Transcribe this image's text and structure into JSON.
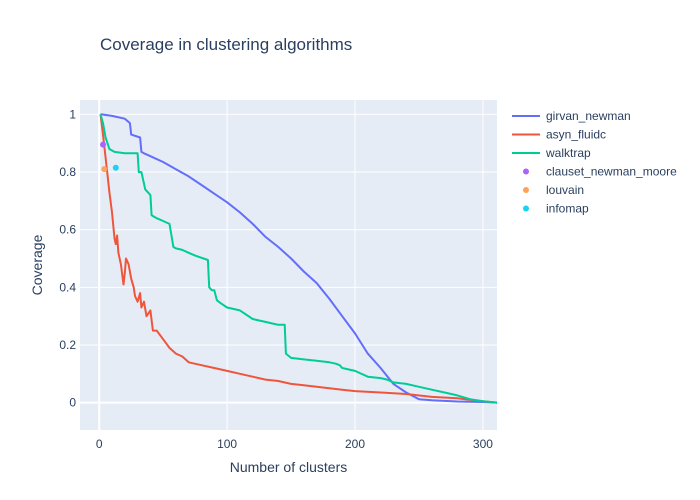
{
  "chart_data": {
    "type": "line",
    "title": "Coverage in clustering algorithms",
    "xlabel": "Number of clusters",
    "ylabel": "Coverage",
    "xlim": [
      -15,
      311
    ],
    "ylim": [
      -0.095,
      1.05
    ],
    "x_ticks": [
      0,
      100,
      200,
      300
    ],
    "x_tick_labels": [
      "0",
      "100",
      "200",
      "300"
    ],
    "y_ticks": [
      0,
      0.2,
      0.4,
      0.6,
      0.8,
      1
    ],
    "y_tick_labels": [
      "0",
      "0.2",
      "0.4",
      "0.6",
      "0.8",
      "1"
    ],
    "grid": true,
    "legend_position": "right",
    "plot_background": "#e5ecf6",
    "series": [
      {
        "name": "girvan_newman",
        "mode": "lines",
        "color": "#636efa",
        "x": [
          1,
          2,
          10,
          20,
          24,
          25,
          32,
          33,
          35,
          40,
          50,
          60,
          70,
          80,
          90,
          100,
          110,
          120,
          130,
          140,
          150,
          160,
          170,
          180,
          190,
          200,
          210,
          220,
          230,
          240,
          250,
          260,
          265,
          270,
          280,
          290,
          300,
          311
        ],
        "y": [
          1.0,
          1.0,
          0.995,
          0.985,
          0.97,
          0.93,
          0.92,
          0.87,
          0.865,
          0.855,
          0.835,
          0.81,
          0.785,
          0.755,
          0.725,
          0.695,
          0.66,
          0.62,
          0.575,
          0.54,
          0.5,
          0.455,
          0.415,
          0.36,
          0.3,
          0.24,
          0.17,
          0.12,
          0.065,
          0.035,
          0.012,
          0.008,
          0.007,
          0.006,
          0.004,
          0.003,
          0.002,
          0.0
        ]
      },
      {
        "name": "asyn_fluidc",
        "mode": "lines",
        "color": "#ef553b",
        "x": [
          1,
          3,
          5,
          8,
          10,
          12,
          13,
          14,
          15,
          17,
          19,
          20,
          21,
          23,
          25,
          27,
          28,
          30,
          32,
          33,
          35,
          37,
          40,
          42,
          45,
          50,
          55,
          60,
          65,
          70,
          80,
          90,
          100,
          110,
          120,
          130,
          140,
          150,
          160,
          170,
          180,
          190,
          200,
          220,
          240,
          260,
          280,
          300,
          311
        ],
        "y": [
          1.0,
          0.93,
          0.85,
          0.73,
          0.66,
          0.57,
          0.55,
          0.58,
          0.52,
          0.48,
          0.41,
          0.45,
          0.5,
          0.48,
          0.43,
          0.4,
          0.37,
          0.35,
          0.38,
          0.33,
          0.35,
          0.3,
          0.32,
          0.25,
          0.25,
          0.22,
          0.19,
          0.17,
          0.16,
          0.14,
          0.13,
          0.12,
          0.11,
          0.1,
          0.09,
          0.08,
          0.075,
          0.065,
          0.06,
          0.055,
          0.05,
          0.045,
          0.04,
          0.035,
          0.03,
          0.02,
          0.015,
          0.005,
          0.0
        ]
      },
      {
        "name": "walktrap",
        "mode": "lines",
        "color": "#00cc96",
        "x": [
          1,
          3,
          5,
          8,
          12,
          20,
          25,
          30,
          31,
          33,
          35,
          36,
          38,
          40,
          41,
          45,
          50,
          55,
          58,
          60,
          65,
          70,
          75,
          85,
          86,
          88,
          90,
          92,
          95,
          100,
          110,
          120,
          125,
          130,
          135,
          140,
          145,
          146,
          150,
          160,
          170,
          180,
          185,
          188,
          190,
          200,
          210,
          220,
          225,
          230,
          240,
          250,
          260,
          270,
          280,
          290,
          300,
          311
        ],
        "y": [
          1.0,
          0.97,
          0.92,
          0.88,
          0.87,
          0.865,
          0.865,
          0.865,
          0.8,
          0.8,
          0.76,
          0.74,
          0.73,
          0.72,
          0.65,
          0.64,
          0.63,
          0.62,
          0.54,
          0.535,
          0.53,
          0.52,
          0.51,
          0.495,
          0.4,
          0.39,
          0.39,
          0.355,
          0.345,
          0.33,
          0.32,
          0.29,
          0.285,
          0.28,
          0.275,
          0.27,
          0.27,
          0.17,
          0.155,
          0.15,
          0.145,
          0.14,
          0.135,
          0.13,
          0.12,
          0.11,
          0.09,
          0.085,
          0.08,
          0.07,
          0.065,
          0.055,
          0.045,
          0.035,
          0.025,
          0.012,
          0.005,
          0.0
        ]
      },
      {
        "name": "clauset_newman_moore",
        "mode": "markers",
        "color": "#ab63fa",
        "x": [
          3
        ],
        "y": [
          0.895
        ]
      },
      {
        "name": "louvain",
        "mode": "markers",
        "color": "#ffa15a",
        "x": [
          4
        ],
        "y": [
          0.81
        ]
      },
      {
        "name": "infomap",
        "mode": "markers",
        "color": "#19d3f3",
        "x": [
          13
        ],
        "y": [
          0.815
        ]
      }
    ]
  }
}
